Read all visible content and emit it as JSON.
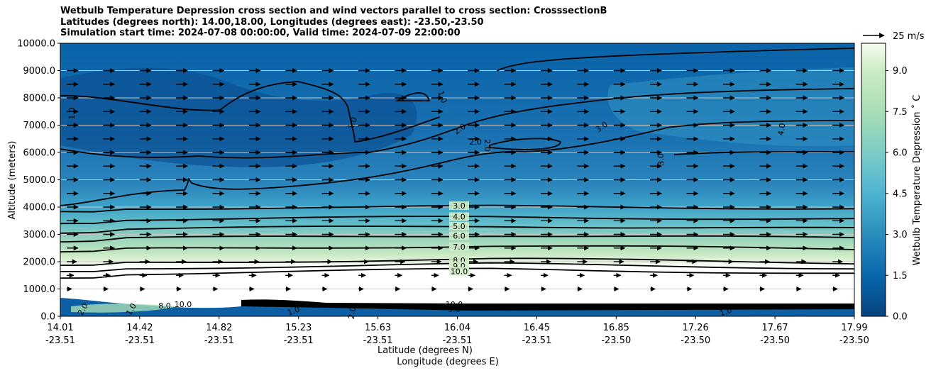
{
  "chart_data": {
    "type": "contour",
    "title_lines": [
      "Wetbulb Temperature Depression cross section and wind vectors parallel to cross section: CrosssectionB",
      "Latitudes (degrees north): 14.00,18.00, Longitudes (degrees east): -23.50,-23.50",
      "Simulation start time: 2024-07-08 00:00:00, Valid time: 2024-07-09 22:00:00"
    ],
    "ylabel": "Altitude (meters)",
    "xlabel_lat": "Latitude (degrees N)",
    "xlabel_lon": "Longitude (degrees E)",
    "ylim": [
      0,
      10000
    ],
    "yticks": [
      "0.0",
      "1000.0",
      "2000.0",
      "3000.0",
      "4000.0",
      "5000.0",
      "6000.0",
      "7000.0",
      "8000.0",
      "9000.0",
      "10000.0"
    ],
    "yvals": [
      0,
      1000,
      2000,
      3000,
      4000,
      5000,
      6000,
      7000,
      8000,
      9000,
      10000
    ],
    "xticks_lat": [
      "14.01",
      "14.42",
      "14.82",
      "15.23",
      "15.63",
      "16.04",
      "16.45",
      "16.85",
      "17.26",
      "17.67",
      "17.99"
    ],
    "xticks_lon": [
      "-23.51",
      "-23.51",
      "-23.51",
      "-23.51",
      "-23.51",
      "-23.51",
      "-23.51",
      "-23.50",
      "-23.50",
      "-23.50",
      "-23.50"
    ],
    "colorbar_label": "Wetbulb Temperature Depression ˚ C",
    "colorbar_ticks": [
      "0.0",
      "1.5",
      "3.0",
      "4.5",
      "6.0",
      "7.5",
      "9.0"
    ],
    "colorbar_range": [
      0,
      10
    ],
    "quiver_key": "25 m/s",
    "contour_levels": [
      {
        "value": 3,
        "label": "3.0",
        "height_m": 4050
      },
      {
        "value": 4,
        "label": "4.0",
        "height_m": 3650
      },
      {
        "value": 5,
        "label": "5.0",
        "height_m": 3300
      },
      {
        "value": 6,
        "label": "6.0",
        "height_m": 2950
      },
      {
        "value": 7,
        "label": "7.0",
        "height_m": 2550
      },
      {
        "value": 8,
        "label": "8.0",
        "height_m": 2050
      },
      {
        "value": 9,
        "label": "9.0",
        "height_m": 1850
      },
      {
        "value": 10,
        "label": "10.0",
        "height_m": 1650
      }
    ],
    "upper_labels": [
      "1.0",
      "1.0",
      "1.0",
      "2.0",
      "2.0",
      "2.0",
      "3.0",
      "3.0",
      "4.0"
    ],
    "surface_labels": [
      "10.0",
      "8.0",
      "2.0",
      "1.0",
      "10.0",
      "1.0",
      "9.0",
      "2.0",
      "1.0"
    ],
    "wind_level_heights_m": [
      9000,
      8500,
      8000,
      7500,
      7000,
      6500,
      6000,
      5500,
      5000,
      4500,
      4000,
      3500,
      3000,
      2500,
      2000,
      1500,
      1000
    ]
  }
}
